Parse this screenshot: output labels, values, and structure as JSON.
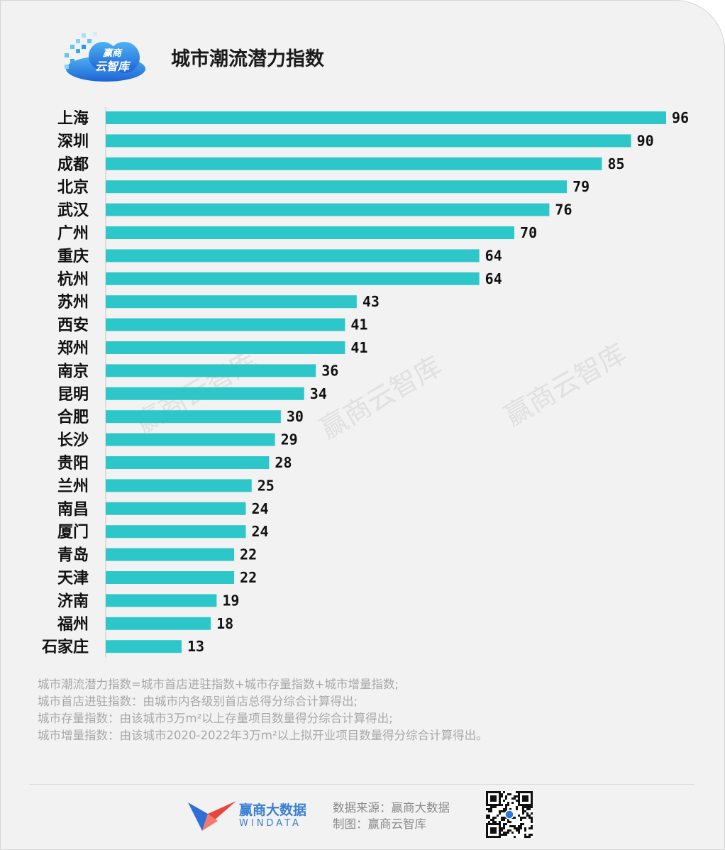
{
  "brand": {
    "logo_line1": "赢商",
    "logo_line2": "云智库"
  },
  "chart_data": {
    "type": "bar",
    "orientation": "horizontal",
    "title": "城市潮流潜力指数",
    "categories": [
      "上海",
      "深圳",
      "成都",
      "北京",
      "武汉",
      "广州",
      "重庆",
      "杭州",
      "苏州",
      "西安",
      "郑州",
      "南京",
      "昆明",
      "合肥",
      "长沙",
      "贵阳",
      "兰州",
      "南昌",
      "厦门",
      "青岛",
      "天津",
      "济南",
      "福州",
      "石家庄"
    ],
    "values": [
      96,
      90,
      85,
      79,
      76,
      70,
      64,
      64,
      43,
      41,
      41,
      36,
      34,
      30,
      29,
      28,
      25,
      24,
      24,
      22,
      22,
      19,
      18,
      13
    ],
    "xlim": [
      0,
      96
    ],
    "bar_color": "#2ec7c9",
    "data_labels": true,
    "grid": false
  },
  "watermark": "赢商云智库",
  "notes": [
    "城市潮流潜力指数=城市首店进驻指数+城市存量指数+城市增量指数;",
    "城市首店进驻指数：由城市内各级别首店总得分综合计算得出;",
    "城市存量指数：由该城市3万m²以上存量项目数量得分综合计算得出;",
    "城市增量指数：由该城市2020-2022年3万m²以上拟开业项目数量得分综合计算得出。"
  ],
  "footer": {
    "company_name": "赢商大数据",
    "company_sub": "WINDATA",
    "source": "数据来源：赢商大数据",
    "made_by": "制图：赢商云智库"
  },
  "colors": {
    "bar": "#2ec7c9",
    "logo_blue": "#2a7be0",
    "accent_red": "#e8453c"
  }
}
